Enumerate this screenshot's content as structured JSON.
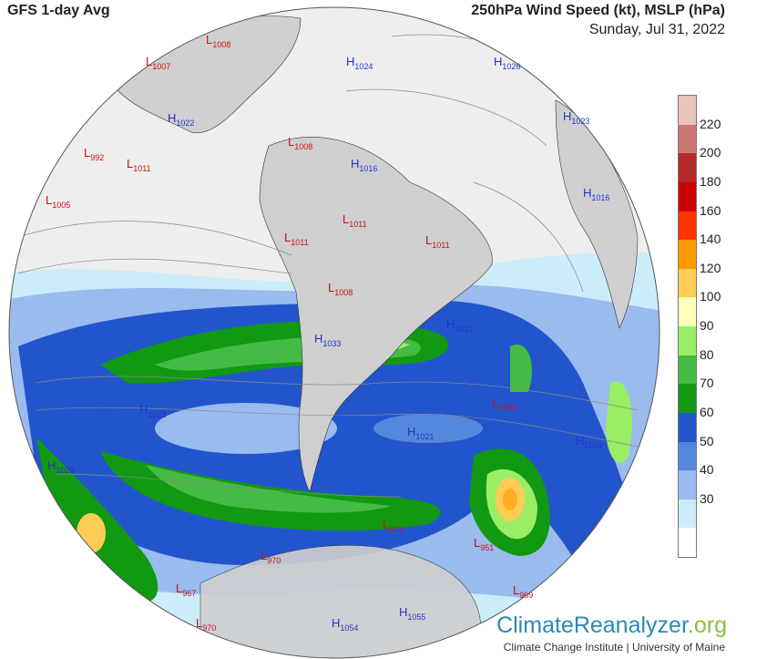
{
  "header": {
    "left_title": "GFS 1-day Avg",
    "right_title": "250hPa Wind Speed (kt), MSLP (hPa)",
    "date": "Sunday, Jul 31, 2022"
  },
  "legend": {
    "ticks": [
      "220",
      "200",
      "180",
      "160",
      "140",
      "120",
      "100",
      "90",
      "80",
      "70",
      "60",
      "50",
      "40",
      "30"
    ],
    "colors": [
      "#e8c3b8",
      "#cc7776",
      "#b32a2a",
      "#cc0000",
      "#ff3300",
      "#ff9900",
      "#ffcc55",
      "#ffffbb",
      "#99ee66",
      "#44bb44",
      "#119911",
      "#2255cc",
      "#5588dd",
      "#99bbee",
      "#ccecf9",
      "#ffffff"
    ]
  },
  "pressure_labels": [
    {
      "type": "L",
      "value": "1008"
    },
    {
      "type": "L",
      "value": "1007"
    },
    {
      "type": "H",
      "value": "1024"
    },
    {
      "type": "H",
      "value": "1026"
    },
    {
      "type": "H",
      "value": "1022"
    },
    {
      "type": "H",
      "value": "1023"
    },
    {
      "type": "L",
      "value": "1008"
    },
    {
      "type": "L",
      "value": "992"
    },
    {
      "type": "L",
      "value": "1011"
    },
    {
      "type": "H",
      "value": "1016"
    },
    {
      "type": "H",
      "value": "1016"
    },
    {
      "type": "L",
      "value": "1005"
    },
    {
      "type": "L",
      "value": "1011"
    },
    {
      "type": "L",
      "value": "1011"
    },
    {
      "type": "L",
      "value": "1011"
    },
    {
      "type": "L",
      "value": "1008"
    },
    {
      "type": "H",
      "value": "1021"
    },
    {
      "type": "H",
      "value": "1033"
    },
    {
      "type": "L",
      "value": "1010"
    },
    {
      "type": "H",
      "value": "1028"
    },
    {
      "type": "H",
      "value": "1021"
    },
    {
      "type": "H",
      "value": "1033"
    },
    {
      "type": "H",
      "value": "1028"
    },
    {
      "type": "L",
      "value": "973"
    },
    {
      "type": "L",
      "value": "951"
    },
    {
      "type": "L",
      "value": "970"
    },
    {
      "type": "L",
      "value": "967"
    },
    {
      "type": "L",
      "value": "969"
    },
    {
      "type": "H",
      "value": "1055"
    },
    {
      "type": "H",
      "value": "1054"
    },
    {
      "type": "L",
      "value": "970"
    }
  ],
  "colors": {
    "low": "#cc1111",
    "high": "#2233cc",
    "land": "#cfcfcf",
    "ocean": "#ececec"
  },
  "branding": {
    "name": "ClimateReanalyzer",
    "tld": ".org",
    "credit": "Climate Change Institute | University of Maine"
  }
}
